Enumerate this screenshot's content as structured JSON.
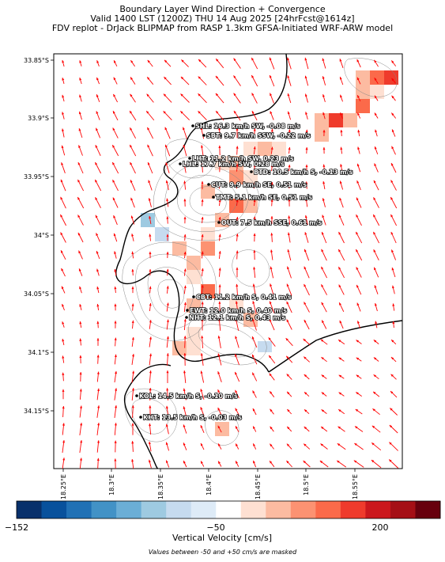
{
  "title": {
    "line1": "Boundary Layer Wind Direction + Convergence",
    "line2": "Valid 1400 LST (1200Z) THU 14 Aug 2025 [24hrFcst@1614z]",
    "line3": "FDV replot - DrJack BLIPMAP from RASP 1.3km GFSA-Initiated WRF-ARW model"
  },
  "lat_ticks": [
    "33.85°S",
    "33.9°S",
    "33.95°S",
    "34°S",
    "34.05°S",
    "34.1°S",
    "34.15°S"
  ],
  "lon_ticks": [
    "18.25°E",
    "18.3°E",
    "18.35°E",
    "18.4°E",
    "18.45°E",
    "18.5°E",
    "18.55°E"
  ],
  "stations": [
    {
      "code": "SHL",
      "text": "SHL: 16.3 km/h SW, -0.08 m/s"
    },
    {
      "code": "SBT",
      "text": "SBT: 9.7 km/h SSW, -0.22 m/s"
    },
    {
      "code": "LHT",
      "text": "LHT: 11.2 km/h SW, 0.23 m/s"
    },
    {
      "code": "LHL",
      "text": "LHL: 17.7 km/h SW, 0.28 m/s"
    },
    {
      "code": "BTD",
      "text": "BTD: 10.5 km/h S, -0.13 m/s"
    },
    {
      "code": "CUT",
      "text": "CUT: 9.9 km/h SE, 0.51 m/s"
    },
    {
      "code": "TMT",
      "text": "TMT: 5.1 km/h SE, 0.51 m/s"
    },
    {
      "code": "OUT",
      "text": "OUT: 7.5 km/h SSE, 0.61 m/s"
    },
    {
      "code": "CBT",
      "text": "CBT: 11.2 km/h S, 0.41 m/s"
    },
    {
      "code": "EWT",
      "text": "EWT: 12.0 km/h S, 0.40 m/s"
    },
    {
      "code": "NHT",
      "text": "NHT: 12.1 km/h S, 0.43 m/s"
    },
    {
      "code": "KOL",
      "text": "KOL: 14.5 km/h S, -0.10 m/s"
    },
    {
      "code": "KHT",
      "text": "KHT: 13.5 km/h S, -0.03 m/s"
    }
  ],
  "colorbar": {
    "label": "Vertical Velocity [cm/s]",
    "min": "−152",
    "mid": "−50",
    "max": "200",
    "colors": [
      "#08306b",
      "#08519c",
      "#2171b5",
      "#4292c6",
      "#6baed6",
      "#9ecae1",
      "#c6dbef",
      "#deebf7",
      "#ffffff",
      "#fee0d2",
      "#fcbba1",
      "#fc9272",
      "#fb6a4a",
      "#ef3b2c",
      "#cb181d",
      "#a50f15",
      "#67000d"
    ]
  },
  "note": "Values between -50 and +50 cm/s are masked",
  "colors": {
    "arrow": "#ff0000",
    "coast": "#000000",
    "contour": "#888888"
  }
}
